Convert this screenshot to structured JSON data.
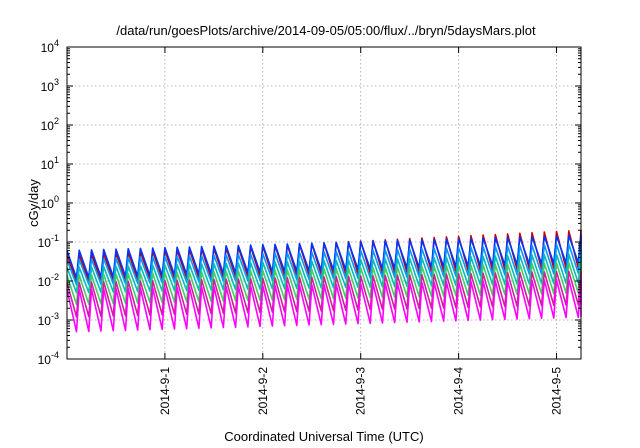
{
  "chart_data": {
    "type": "line",
    "title": "/data/run/goesPlots/archive/2014-09-05/05:00/flux/../bryn/5daysMars.plot",
    "xlabel": "Coordinated Universal Time (UTC)",
    "ylabel": "cGy/day",
    "yscale": "log",
    "ylim": [
      0.0001,
      10000
    ],
    "y_ticks": [
      {
        "value": 0.0001,
        "base": "10",
        "exp": "-4"
      },
      {
        "value": 0.001,
        "base": "10",
        "exp": "-3"
      },
      {
        "value": 0.01,
        "base": "10",
        "exp": "-2"
      },
      {
        "value": 0.1,
        "base": "10",
        "exp": "-1"
      },
      {
        "value": 1,
        "base": "10",
        "exp": "0"
      },
      {
        "value": 10,
        "base": "10",
        "exp": "1"
      },
      {
        "value": 100,
        "base": "10",
        "exp": "2"
      },
      {
        "value": 1000,
        "base": "10",
        "exp": "3"
      },
      {
        "value": 10000,
        "base": "10",
        "exp": "4"
      }
    ],
    "xlim": [
      "2014-08-31 00:00",
      "2014-09-05 06:00"
    ],
    "x_ticks": [
      {
        "value": "2014-09-01 00:00",
        "label": "2014-9-1"
      },
      {
        "value": "2014-09-02 00:00",
        "label": "2014-9-2"
      },
      {
        "value": "2014-09-03 00:00",
        "label": "2014-9-3"
      },
      {
        "value": "2014-09-04 00:00",
        "label": "2014-9-4"
      },
      {
        "value": "2014-09-05 00:00",
        "label": "2014-9-5"
      }
    ],
    "grid": true,
    "legend": "none",
    "period_hours": 3,
    "series": [
      {
        "color": "#cc0000",
        "peak_start": 0.045,
        "peak_end": 0.2,
        "trough_start": 0.01,
        "trough_end": 0.022
      },
      {
        "color": "#0033ff",
        "peak_start": 0.06,
        "peak_end": 0.15,
        "trough_start": 0.012,
        "trough_end": 0.03
      },
      {
        "color": "#0099ff",
        "peak_start": 0.035,
        "peak_end": 0.09,
        "trough_start": 0.008,
        "trough_end": 0.016
      },
      {
        "color": "#00bbbb",
        "peak_start": 0.022,
        "peak_end": 0.05,
        "trough_start": 0.005,
        "trough_end": 0.009
      },
      {
        "color": "#44cc66",
        "peak_start": 0.014,
        "peak_end": 0.03,
        "trough_start": 0.0025,
        "trough_end": 0.005
      },
      {
        "color": "#cc2299",
        "peak_start": 0.009,
        "peak_end": 0.018,
        "trough_start": 0.0012,
        "trough_end": 0.0025
      },
      {
        "color": "#ff00ff",
        "peak_start": 0.006,
        "peak_end": 0.011,
        "trough_start": 0.0005,
        "trough_end": 0.0012
      }
    ]
  }
}
